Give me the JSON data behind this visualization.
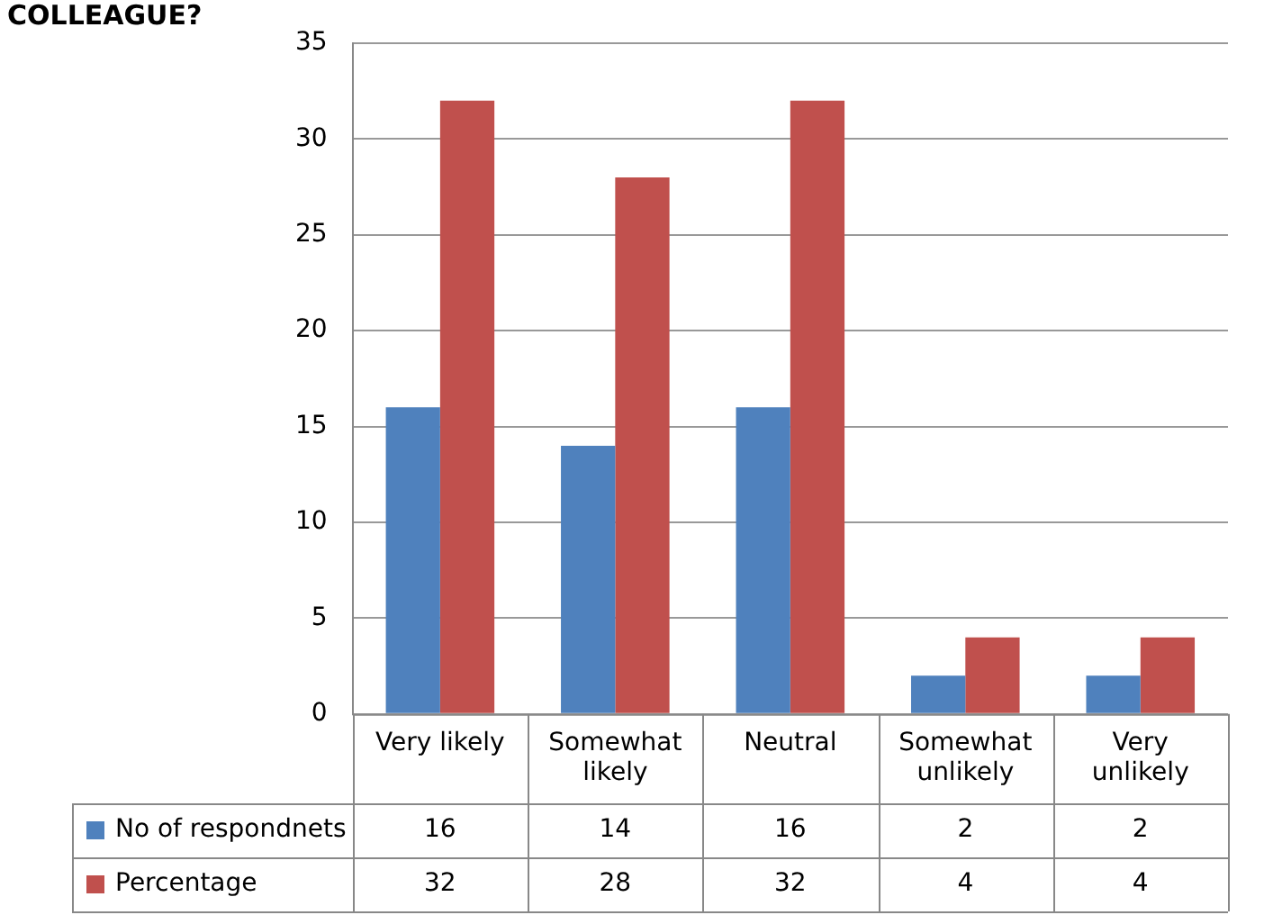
{
  "chart_data": {
    "type": "bar",
    "title": "COLLEAGUE?",
    "categories": [
      "Very likely",
      "Somewhat likely",
      "Neutral",
      "Somewhat unlikely",
      "Very unlikely"
    ],
    "series": [
      {
        "name": "No of respondnets",
        "color": "#4f81bd",
        "values": [
          16,
          14,
          16,
          2,
          2
        ]
      },
      {
        "name": "Percentage",
        "color": "#c0504d",
        "values": [
          32,
          28,
          32,
          4,
          4
        ]
      }
    ],
    "ylim": [
      0,
      35
    ],
    "yticks": [
      0,
      5,
      10,
      15,
      20,
      25,
      30,
      35
    ],
    "grid": "y",
    "legend": "bottom",
    "data_labels": true
  }
}
